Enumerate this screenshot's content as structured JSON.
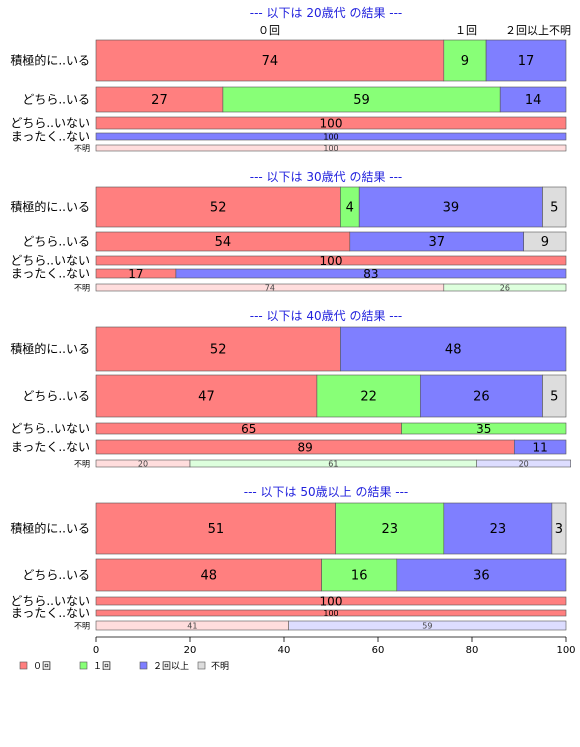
{
  "chart_data": {
    "type": "bar",
    "orientation": "horizontal",
    "stacked": "percent",
    "xlim": [
      0,
      100
    ],
    "x_ticks": [
      "0",
      "20",
      "40",
      "60",
      "80",
      "100"
    ],
    "series_names": [
      "０回",
      "１回",
      "２回以上",
      "不明"
    ],
    "series_colors": [
      "#ff7f7f",
      "#88ff77",
      "#7f7fff",
      "#dddddd"
    ],
    "legend_position": "bottom-left",
    "panels": [
      {
        "title": "--- 以下は 20歳代 の結果 ---",
        "rows": [
          {
            "label": "積極的に..いる",
            "values": [
              74,
              9,
              17,
              0
            ]
          },
          {
            "label": "どちら..いる",
            "values": [
              27,
              59,
              14,
              0
            ]
          },
          {
            "label": "どちら..いない",
            "values": [
              100,
              0,
              0,
              0
            ]
          },
          {
            "label": "まったく..ない",
            "values": [
              0,
              0,
              100,
              0
            ]
          },
          {
            "label": "不明",
            "values": [
              100,
              0,
              0,
              0
            ]
          }
        ]
      },
      {
        "title": "--- 以下は 30歳代 の結果 ---",
        "rows": [
          {
            "label": "積極的に..いる",
            "values": [
              52,
              4,
              39,
              5
            ]
          },
          {
            "label": "どちら..いる",
            "values": [
              54,
              0,
              37,
              9
            ]
          },
          {
            "label": "どちら..いない",
            "values": [
              100,
              0,
              0,
              0
            ]
          },
          {
            "label": "まったく..ない",
            "values": [
              17,
              0,
              83,
              0
            ]
          },
          {
            "label": "不明",
            "values": [
              74,
              26,
              0,
              0
            ]
          }
        ]
      },
      {
        "title": "--- 以下は 40歳代 の結果 ---",
        "rows": [
          {
            "label": "積極的に..いる",
            "values": [
              52,
              0,
              48,
              0
            ]
          },
          {
            "label": "どちら..いる",
            "values": [
              47,
              22,
              26,
              5
            ]
          },
          {
            "label": "どちら..いない",
            "values": [
              65,
              35,
              0,
              0
            ]
          },
          {
            "label": "まったく..ない",
            "values": [
              89,
              0,
              11,
              0
            ]
          },
          {
            "label": "不明",
            "values": [
              20,
              61,
              20,
              0
            ]
          }
        ]
      },
      {
        "title": "--- 以下は 50歳以上 の結果 ---",
        "rows": [
          {
            "label": "積極的に..いる",
            "values": [
              51,
              23,
              23,
              3
            ]
          },
          {
            "label": "どちら..いる",
            "values": [
              48,
              16,
              36,
              0
            ]
          },
          {
            "label": "どちら..いない",
            "values": [
              100,
              0,
              0,
              0
            ]
          },
          {
            "label": "まったく..ない",
            "values": [
              100,
              0,
              0,
              0
            ]
          },
          {
            "label": "不明",
            "values": [
              41,
              0,
              59,
              0
            ]
          }
        ]
      }
    ]
  }
}
